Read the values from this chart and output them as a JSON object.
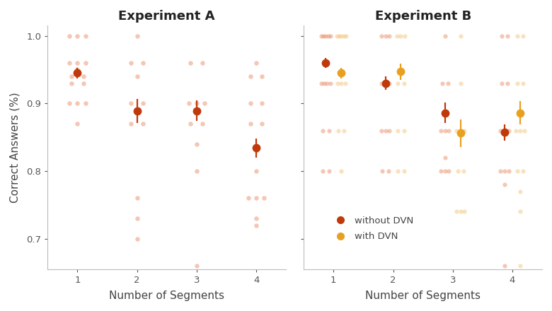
{
  "exp_a": {
    "title": "Experiment A",
    "segments": [
      1,
      2,
      3,
      4
    ],
    "mean_no_dvn": [
      0.945,
      0.889,
      0.889,
      0.834
    ],
    "ci_no_dvn": [
      0.008,
      0.018,
      0.015,
      0.014
    ],
    "jitter_no_dvn": {
      "1": [
        1.0,
        1.0,
        1.0,
        0.96,
        0.96,
        0.96,
        0.95,
        0.94,
        0.94,
        0.93,
        0.93,
        0.9,
        0.9,
        0.9,
        0.87
      ],
      "2": [
        1.0,
        0.96,
        0.96,
        0.94,
        0.9,
        0.9,
        0.87,
        0.87,
        0.76,
        0.73,
        0.7
      ],
      "3": [
        0.96,
        0.96,
        0.9,
        0.9,
        0.9,
        0.89,
        0.87,
        0.87,
        0.84,
        0.8,
        0.66
      ],
      "4": [
        0.96,
        0.94,
        0.94,
        0.9,
        0.9,
        0.87,
        0.87,
        0.83,
        0.8,
        0.76,
        0.76,
        0.76,
        0.73,
        0.72
      ]
    }
  },
  "exp_b": {
    "title": "Experiment B",
    "segments": [
      1,
      2,
      3,
      4
    ],
    "mean_no_dvn": [
      0.96,
      0.93,
      0.886,
      0.857
    ],
    "ci_no_dvn": [
      0.007,
      0.01,
      0.015,
      0.012
    ],
    "mean_with_dvn": [
      0.945,
      0.947,
      0.856,
      0.886
    ],
    "ci_with_dvn": [
      0.008,
      0.012,
      0.02,
      0.017
    ],
    "jitter_no_dvn": {
      "1": [
        1.0,
        1.0,
        1.0,
        1.0,
        1.0,
        0.93,
        0.93,
        0.93,
        0.93,
        0.86,
        0.86,
        0.8,
        0.8
      ],
      "2": [
        1.0,
        1.0,
        1.0,
        0.93,
        0.93,
        0.93,
        0.86,
        0.86,
        0.86,
        0.8,
        0.8
      ],
      "3": [
        1.0,
        0.93,
        0.93,
        0.86,
        0.86,
        0.86,
        0.82,
        0.8,
        0.8,
        0.8
      ],
      "4": [
        1.0,
        1.0,
        0.93,
        0.93,
        0.86,
        0.86,
        0.86,
        0.8,
        0.8,
        0.8,
        0.78,
        0.66
      ]
    },
    "jitter_with_dvn": {
      "1": [
        1.0,
        1.0,
        1.0,
        1.0,
        1.0,
        0.93,
        0.93,
        0.93,
        0.86,
        0.86,
        0.8
      ],
      "2": [
        1.0,
        1.0,
        1.0,
        0.93,
        0.93,
        0.86,
        0.86,
        0.8,
        0.8
      ],
      "3": [
        1.0,
        0.93,
        0.86,
        0.86,
        0.86,
        0.8,
        0.8,
        0.74,
        0.74,
        0.74
      ],
      "4": [
        1.0,
        1.0,
        0.93,
        0.93,
        0.86,
        0.86,
        0.86,
        0.8,
        0.8,
        0.77,
        0.74,
        0.66
      ]
    }
  },
  "color_no_dvn": "#C0390A",
  "color_with_dvn": "#E8A020",
  "color_jitter_no_dvn": "#E8845A",
  "color_jitter_with_dvn": "#F0C070",
  "ylabel": "Correct Answers (%)",
  "xlabel": "Number of Segments",
  "ylim": [
    0.655,
    1.015
  ],
  "yticks": [
    0.7,
    0.8,
    0.9,
    1.0
  ],
  "bg_color": "#ffffff",
  "fig_width": 7.8,
  "fig_height": 4.4
}
